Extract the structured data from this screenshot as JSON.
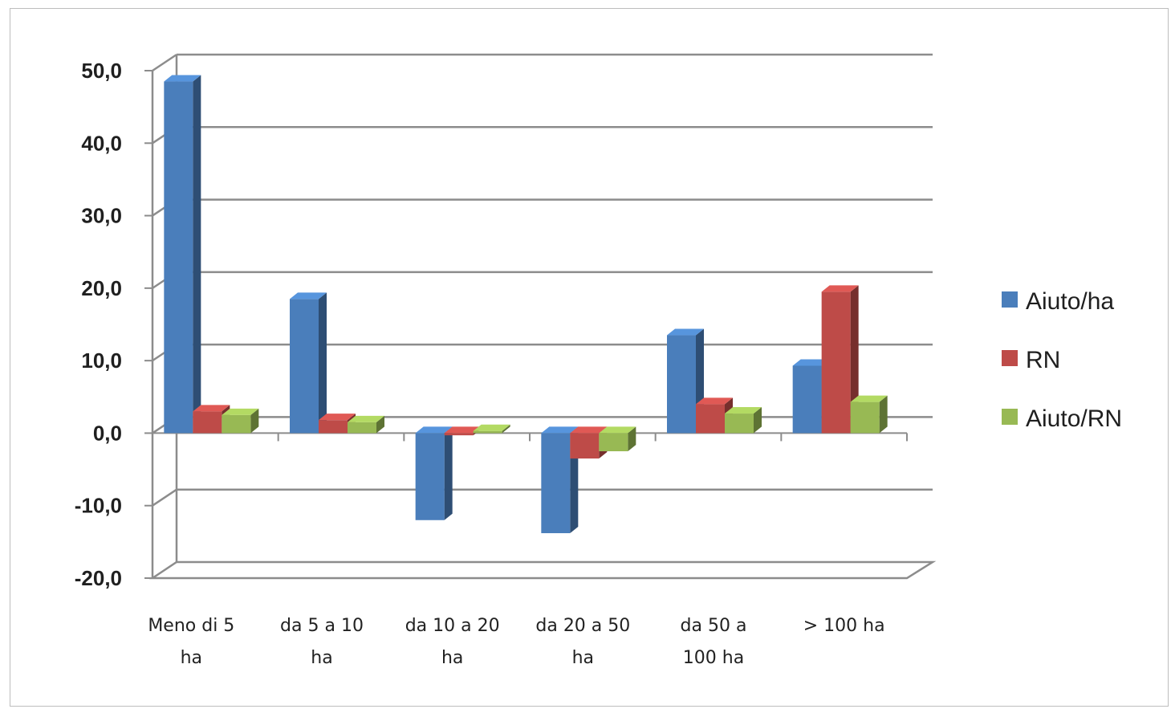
{
  "chart_data": {
    "type": "bar",
    "title": "",
    "xlabel": "",
    "ylabel": "",
    "ylim": [
      -20,
      50
    ],
    "yticks": [
      "50,0",
      "40,0",
      "30,0",
      "20,0",
      "10,0",
      "0,0",
      "-10,0",
      "-20,0"
    ],
    "ytick_values": [
      50,
      40,
      30,
      20,
      10,
      0,
      -10,
      -20
    ],
    "categories": [
      [
        "Meno di 5",
        "ha"
      ],
      [
        "da 5 a 10",
        "ha"
      ],
      [
        "da 10 a 20",
        "ha"
      ],
      [
        "da 20 a 50",
        "ha"
      ],
      [
        "da 50 a",
        "100 ha"
      ],
      [
        "> 100 ha"
      ]
    ],
    "series": [
      {
        "name": "Aiuto/ha",
        "color": "#4a7ebb",
        "values": [
          48.5,
          18.5,
          -12.0,
          -13.8,
          13.5,
          9.3
        ]
      },
      {
        "name": "RN",
        "color": "#be4b48",
        "values": [
          3.0,
          1.8,
          -0.3,
          -3.5,
          4.0,
          19.5
        ]
      },
      {
        "name": "Aiuto/RN",
        "color": "#98b954",
        "values": [
          2.5,
          1.5,
          0.3,
          -2.5,
          2.7,
          4.3
        ]
      }
    ],
    "grid": true,
    "legend_position": "right",
    "style": "3d-clustered-column"
  }
}
